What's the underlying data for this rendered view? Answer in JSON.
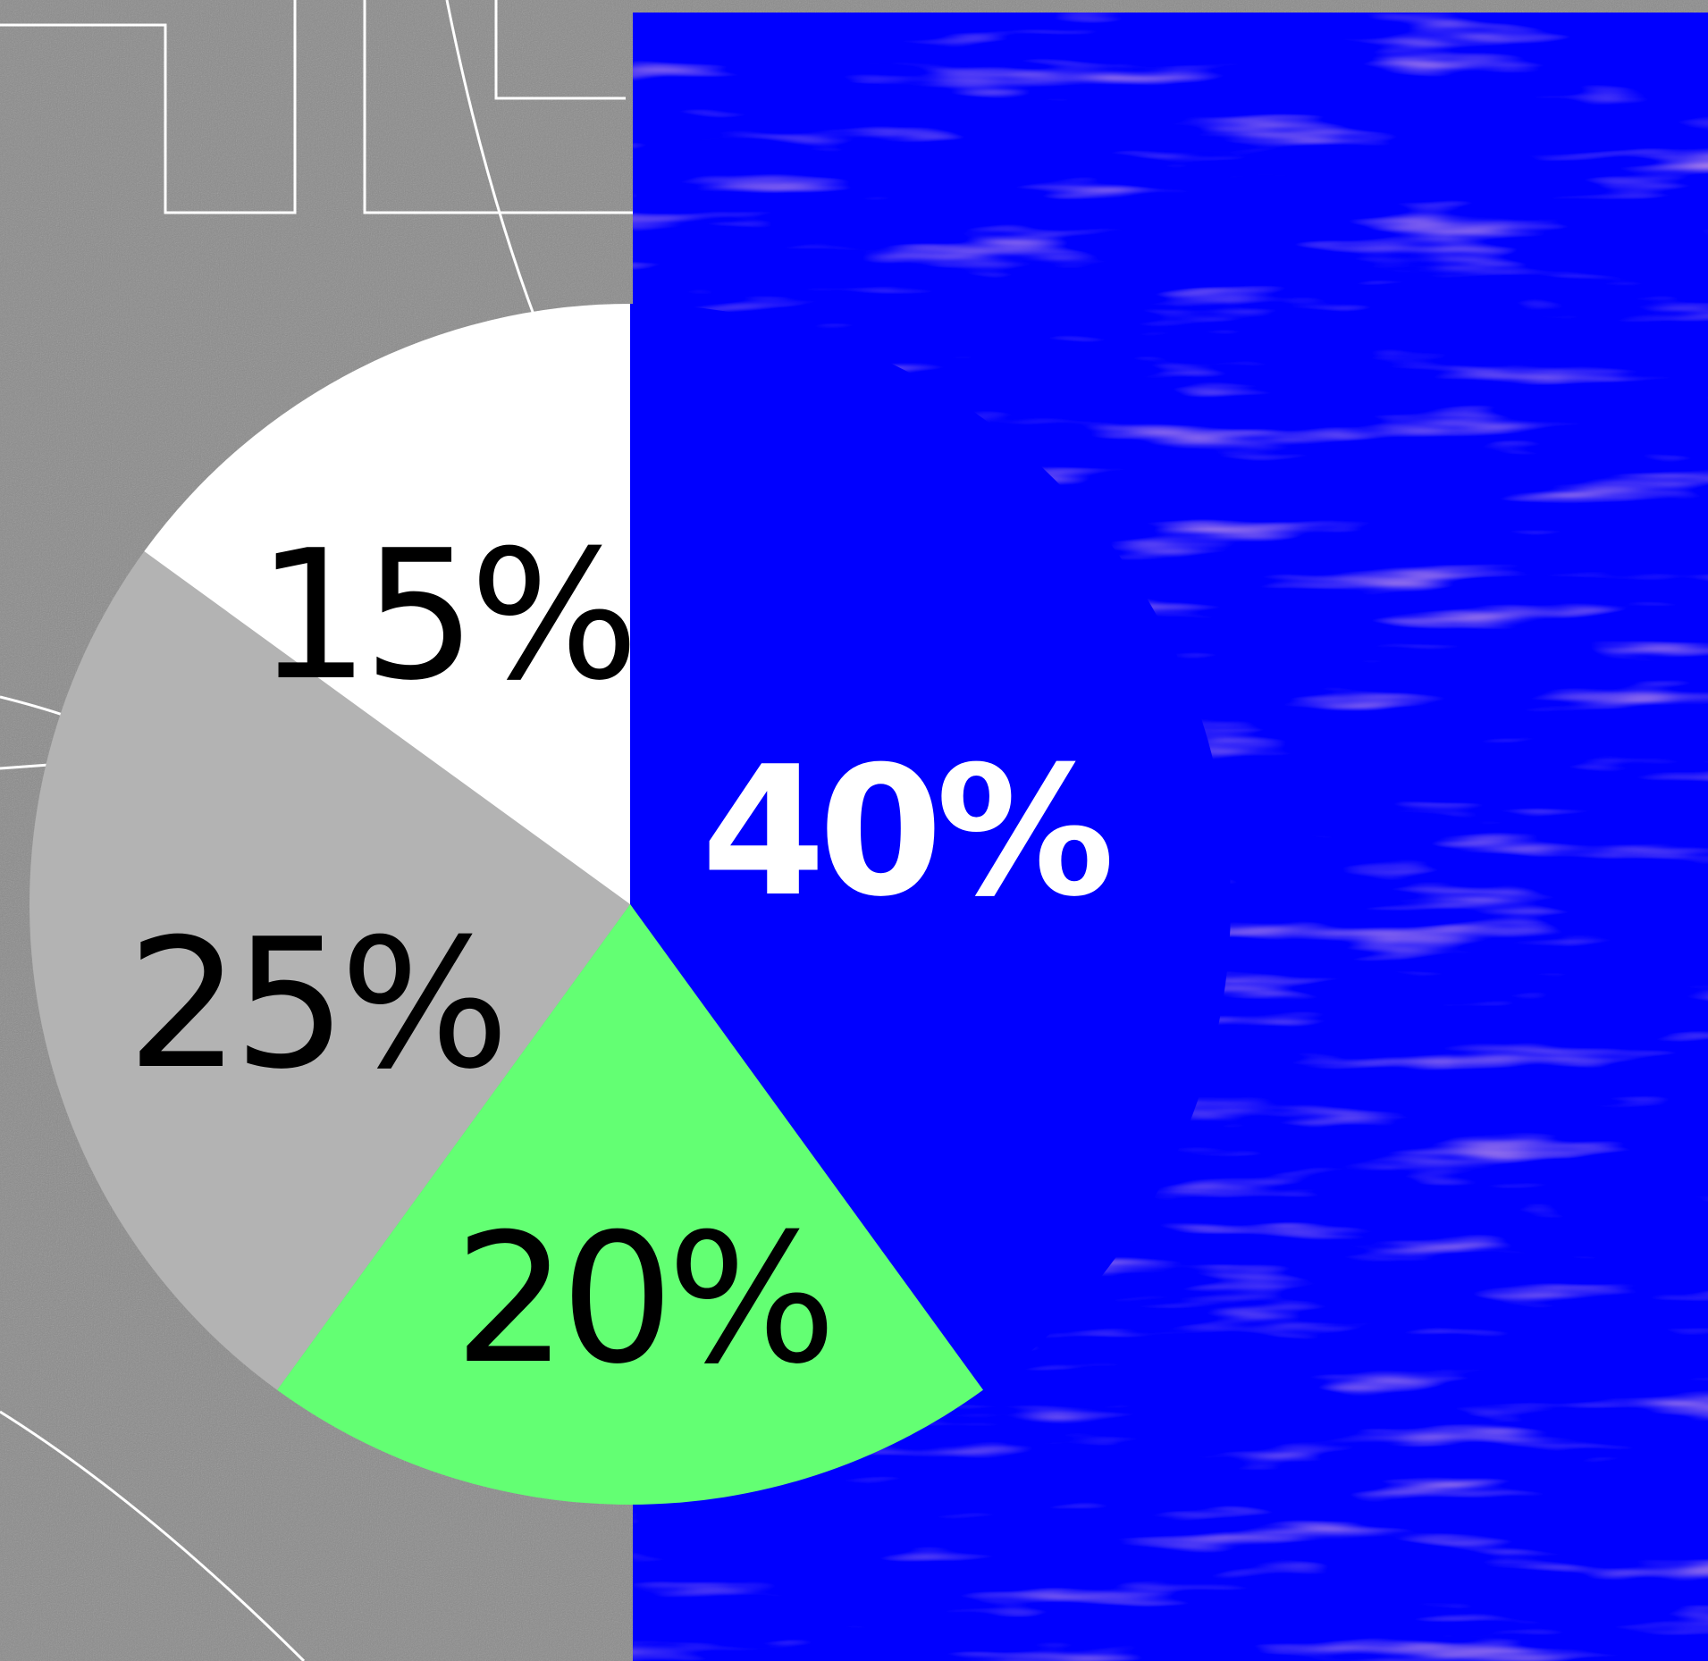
{
  "colors": {
    "background": "#8a8a8a",
    "panel": "#0000ff",
    "outline": "#ffffff"
  },
  "chart_data": {
    "type": "pie",
    "title": "",
    "start_angle_deg": 0,
    "direction": "clockwise",
    "slices": [
      {
        "label": "40%",
        "value": 40,
        "color": "#0000ff",
        "text_color": "#ffffff",
        "bold": true
      },
      {
        "label": "20%",
        "value": 20,
        "color": "#63ff73",
        "text_color": "#000000",
        "bold": false
      },
      {
        "label": "25%",
        "value": 25,
        "color": "#b3b3b3",
        "text_color": "#000000",
        "bold": false
      },
      {
        "label": "15%",
        "value": 15,
        "color": "#ffffff",
        "text_color": "#000000",
        "bold": false
      }
    ]
  }
}
